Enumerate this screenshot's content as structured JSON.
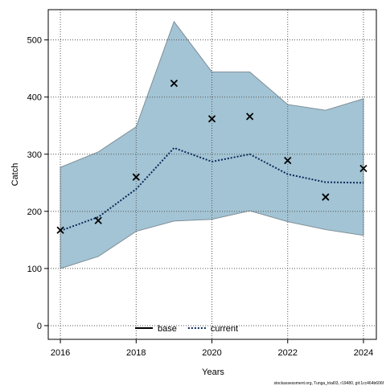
{
  "chart_data": {
    "type": "line",
    "x_label": "Years",
    "y_label": "Catch",
    "footer": "stockassessment.org, Tunga_trial03, r19480, git:1cc464b606f",
    "x": [
      2016,
      2017,
      2018,
      2019,
      2020,
      2021,
      2022,
      2023,
      2024
    ],
    "xlim": [
      2015.68,
      2024.34
    ],
    "xticks": [
      2016,
      2018,
      2020,
      2022,
      2024
    ],
    "ylim": [
      -24,
      553
    ],
    "yticks": [
      0,
      100,
      200,
      300,
      400,
      500
    ],
    "grid": true,
    "legend": "bottom",
    "series": [
      {
        "name": "base",
        "color": "#000000",
        "dash": "solid",
        "values": [
          null,
          null,
          null,
          null,
          null,
          null,
          null,
          null,
          null
        ]
      },
      {
        "name": "current",
        "color": "#0a2a5c",
        "dash": "dotted",
        "values": [
          166,
          190,
          239,
          311,
          287,
          300,
          265,
          251,
          250
        ]
      }
    ],
    "band": {
      "color": "#a3c4d4",
      "lower": [
        100,
        121,
        165,
        183,
        186,
        201,
        182,
        168,
        158
      ],
      "upper": [
        277,
        304,
        348,
        532,
        444,
        444,
        387,
        377,
        397
      ]
    },
    "observed": {
      "color": "#000000",
      "values": [
        167,
        184,
        260,
        424,
        362,
        366,
        289,
        225,
        275
      ]
    }
  }
}
